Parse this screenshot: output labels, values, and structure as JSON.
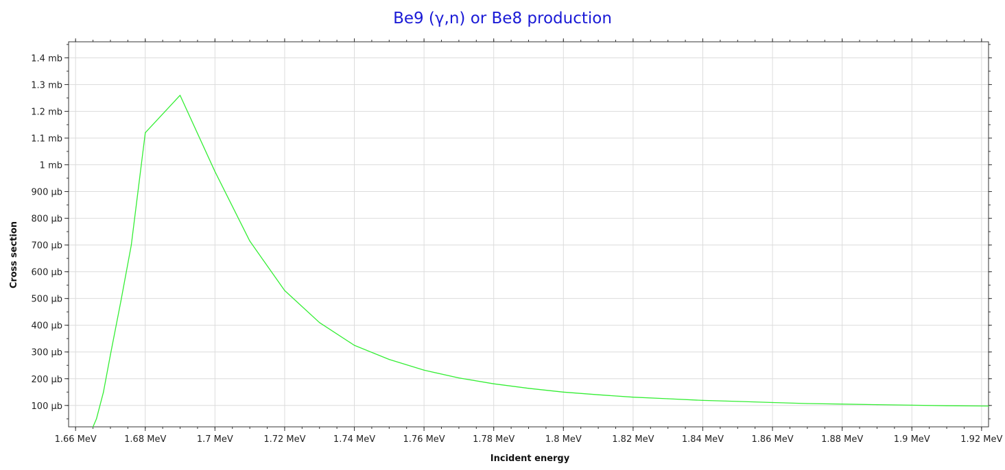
{
  "chart_data": {
    "type": "line",
    "title": "Be9 (γ,n) or Be8 production",
    "xlabel": "Incident energy",
    "ylabel": "Cross section",
    "xlim": [
      1.658,
      1.922
    ],
    "ylim": [
      20,
      1460
    ],
    "x_ticks": [
      1.66,
      1.68,
      1.7,
      1.72,
      1.74,
      1.76,
      1.78,
      1.8,
      1.82,
      1.84,
      1.86,
      1.88,
      1.9,
      1.92
    ],
    "x_tick_labels": [
      "1.66 MeV",
      "1.68 MeV",
      "1.7 MeV",
      "1.72 MeV",
      "1.74 MeV",
      "1.76 MeV",
      "1.78 MeV",
      "1.8 MeV",
      "1.82 MeV",
      "1.84 MeV",
      "1.86 MeV",
      "1.88 MeV",
      "1.9 MeV",
      "1.92 MeV"
    ],
    "y_ticks": [
      100,
      200,
      300,
      400,
      500,
      600,
      700,
      800,
      900,
      1000,
      1100,
      1200,
      1300,
      1400
    ],
    "y_tick_labels": [
      "100 µb",
      "200 µb",
      "300 µb",
      "400 µb",
      "500 µb",
      "600 µb",
      "700 µb",
      "800 µb",
      "900 µb",
      "1 mb",
      "1.1 mb",
      "1.2 mb",
      "1.3 mb",
      "1.4 mb"
    ],
    "y_unit": "µb",
    "grid": true,
    "series": [
      {
        "color": "#33ee33",
        "x": [
          1.665,
          1.666,
          1.668,
          1.67,
          1.673,
          1.676,
          1.68,
          1.69,
          1.7,
          1.71,
          1.72,
          1.73,
          1.74,
          1.75,
          1.76,
          1.77,
          1.78,
          1.79,
          1.8,
          1.81,
          1.82,
          1.83,
          1.84,
          1.85,
          1.86,
          1.87,
          1.88,
          1.89,
          1.9,
          1.91,
          1.922
        ],
        "y": [
          20,
          50,
          150,
          290,
          490,
          700,
          1120,
          1260,
          975,
          715,
          530,
          410,
          325,
          272,
          232,
          203,
          181,
          164,
          150,
          140,
          131,
          125,
          119,
          115,
          111,
          107,
          105,
          103,
          101,
          99,
          98
        ]
      }
    ]
  }
}
